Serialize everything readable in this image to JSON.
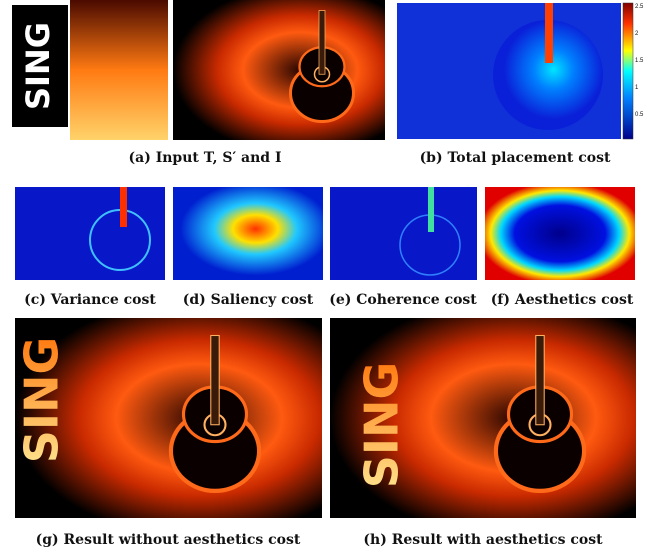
{
  "figure": {
    "input_word": "SING",
    "colorbar_ticks": [
      "2.5",
      "2",
      "1.5",
      "1",
      "0.5"
    ],
    "captions": {
      "a": "(a) Input T, S′ and I",
      "b": "(b) Total placement cost",
      "c": "(c) Variance cost",
      "d": "(d) Saliency cost",
      "e": "(e) Coherence cost",
      "f": "(f) Aesthetics cost",
      "g": "(g) Result without aesthetics cost",
      "h": "(h) Result with aesthetics cost"
    }
  }
}
